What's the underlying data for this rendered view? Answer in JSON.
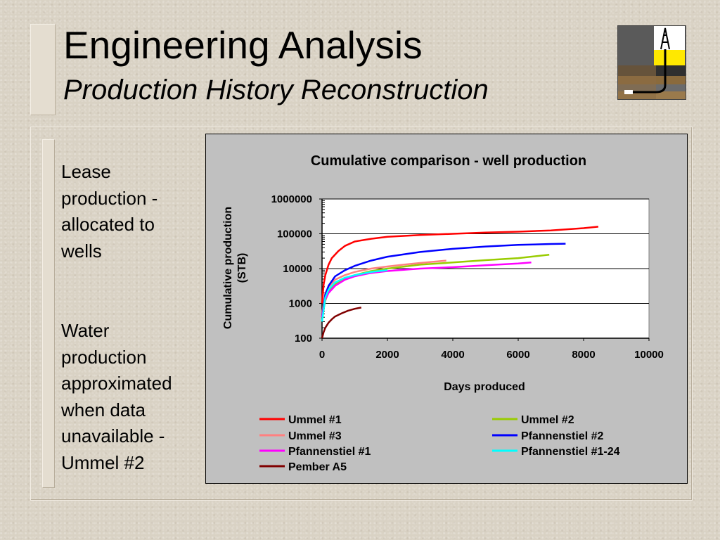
{
  "slide": {
    "title": "Engineering Analysis",
    "subtitle": "Production History Reconstruction",
    "bullets": [
      "Lease\nproduction -\nallocated to\nwells",
      "Water\nproduction\napproximated\nwhen data\nunavailable -\nUmmel #2"
    ],
    "logo_icon": "oil-derrick-cross-section-icon"
  },
  "chart_data": {
    "type": "line",
    "title": "Cumulative comparison - well production",
    "xlabel": "Days produced",
    "ylabel": "Cumulative production (STB)",
    "xlim": [
      0,
      10000
    ],
    "ylim": [
      100,
      1000000
    ],
    "yscale": "log",
    "x_ticks": [
      "0",
      "2000",
      "4000",
      "6000",
      "8000",
      "10000"
    ],
    "y_ticks": [
      "100",
      "1000",
      "10000",
      "100000",
      "1000000"
    ],
    "grid": "horizontal major lines",
    "legend_position": "bottom",
    "background": "#c0c0c0",
    "plot_background": "#ffffff",
    "series": [
      {
        "name": "Ummel #1",
        "color": "#ff0000",
        "x": [
          0,
          50,
          100,
          200,
          300,
          500,
          700,
          1000,
          1500,
          2000,
          3000,
          4000,
          5000,
          6000,
          7000,
          8000,
          8450
        ],
        "y": [
          1000,
          3500,
          6500,
          13000,
          20000,
          32000,
          45000,
          60000,
          72000,
          82000,
          92000,
          100000,
          108000,
          115000,
          125000,
          145000,
          160000
        ]
      },
      {
        "name": "Ummel #2",
        "color": "#99cc00",
        "x": [
          0,
          100,
          200,
          400,
          600,
          1000,
          1500,
          2000,
          3000,
          4000,
          5000,
          6000,
          6950
        ],
        "y": [
          400,
          1200,
          2200,
          3500,
          4500,
          6500,
          8500,
          10000,
          13000,
          15000,
          17500,
          20000,
          25000
        ]
      },
      {
        "name": "Ummel #3",
        "color": "#ff8080",
        "x": [
          0,
          100,
          200,
          400,
          700,
          1000,
          1500,
          2000,
          2500,
          3000,
          3500,
          3800
        ],
        "y": [
          500,
          2000,
          3000,
          4800,
          6500,
          8000,
          10000,
          11500,
          13000,
          14500,
          16000,
          17000
        ]
      },
      {
        "name": "Pfannenstiel #2",
        "color": "#0000ff",
        "x": [
          0,
          100,
          200,
          400,
          700,
          1000,
          1500,
          2000,
          3000,
          4000,
          5000,
          6000,
          7000,
          7450
        ],
        "y": [
          400,
          1800,
          3200,
          6000,
          9000,
          12000,
          17000,
          22000,
          30000,
          37000,
          43000,
          48000,
          51000,
          52000
        ]
      },
      {
        "name": "Pfannenstiel #1",
        "color": "#ff00ff",
        "x": [
          0,
          100,
          200,
          400,
          700,
          1000,
          1500,
          2000,
          3000,
          4000,
          5000,
          6000,
          6400
        ],
        "y": [
          400,
          1300,
          2000,
          3200,
          4800,
          6000,
          7500,
          8500,
          10000,
          11000,
          12500,
          14000,
          15000
        ]
      },
      {
        "name": "Pfannenstiel #1-24",
        "color": "#00ffff",
        "x": [
          0,
          100,
          200,
          400,
          700,
          1000,
          1500,
          2000
        ],
        "y": [
          300,
          1500,
          2500,
          4000,
          5500,
          6500,
          8000,
          9000
        ]
      },
      {
        "name": "Pember A5",
        "color": "#800000",
        "x": [
          0,
          50,
          100,
          200,
          300,
          400,
          600,
          800,
          1000,
          1200
        ],
        "y": [
          100,
          150,
          200,
          280,
          350,
          420,
          520,
          620,
          700,
          760
        ]
      }
    ]
  }
}
